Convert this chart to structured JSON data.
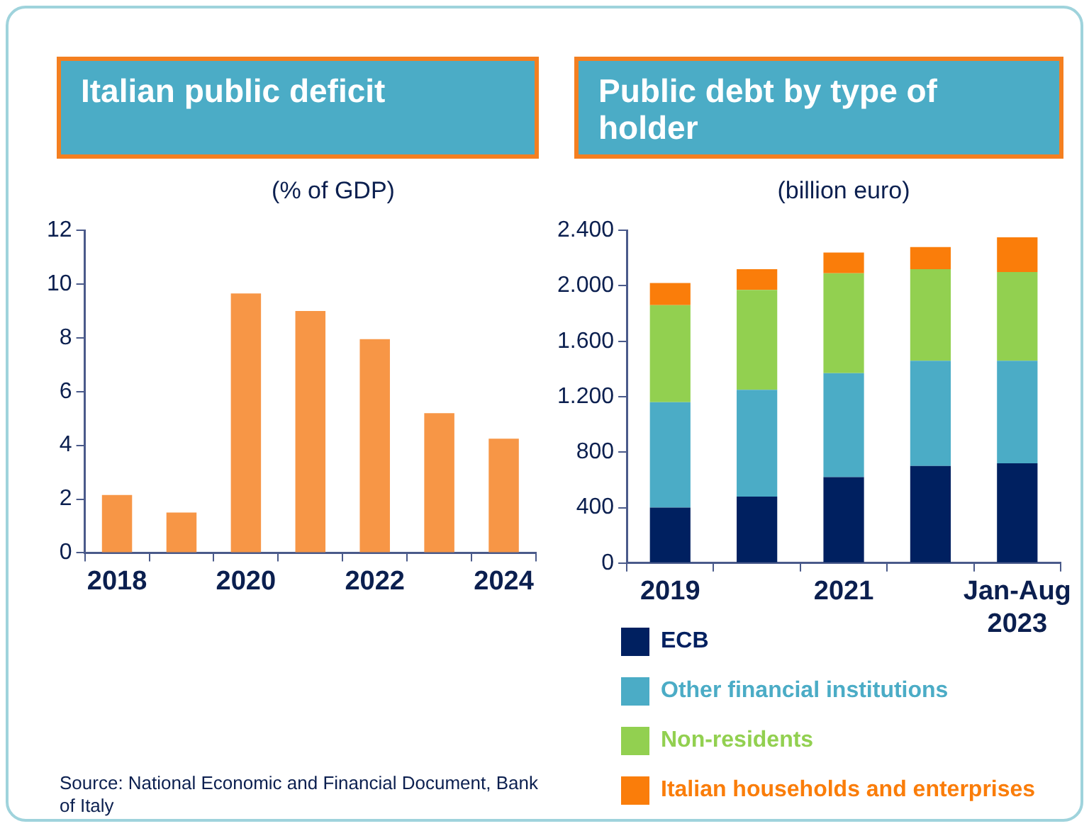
{
  "chart_data": [
    {
      "type": "bar",
      "title": "Italian public deficit",
      "subtitle": "(% of GDP)",
      "categories": [
        "2018",
        null,
        "2020",
        null,
        "2022",
        null,
        "2024"
      ],
      "values": [
        2.15,
        1.5,
        9.65,
        9.0,
        7.95,
        5.2,
        4.25
      ],
      "color": "#f79646",
      "ylim": [
        0,
        12
      ],
      "yticks": [
        0,
        2,
        4,
        6,
        8,
        10,
        12
      ],
      "grid": false,
      "legend": false,
      "annotations": [
        "Source: National Economic and Financial Document, Bank of Italy"
      ]
    },
    {
      "type": "bar",
      "title": "Public debt by type of holder",
      "subtitle": "(billion euro)",
      "categories": [
        "2019",
        null,
        "2021",
        null,
        "Jan-Aug 2023"
      ],
      "stacked": true,
      "series": [
        {
          "name": "ECB",
          "color": "#002060",
          "values": [
            400,
            480,
            620,
            700,
            720
          ]
        },
        {
          "name": "Other financial institutions",
          "color": "#4bacc6",
          "values": [
            760,
            770,
            750,
            760,
            740
          ]
        },
        {
          "name": "Non-residents",
          "color": "#92d050",
          "values": [
            700,
            720,
            720,
            660,
            640
          ]
        },
        {
          "name": "Italian households and enterprises",
          "color": "#fa7d0a",
          "values": [
            160,
            150,
            150,
            160,
            250
          ]
        }
      ],
      "ylim": [
        0,
        2400
      ],
      "yticks": [
        0,
        {
          "value": 400,
          "label": "400"
        },
        {
          "value": 800,
          "label": "800"
        },
        {
          "value": 1200,
          "label": "1.200"
        },
        {
          "value": 1600,
          "label": "1.600"
        },
        {
          "value": 2000,
          "label": "2.000"
        },
        {
          "value": 2400,
          "label": "2.400"
        }
      ],
      "grid": false,
      "legend": "bottom"
    }
  ]
}
